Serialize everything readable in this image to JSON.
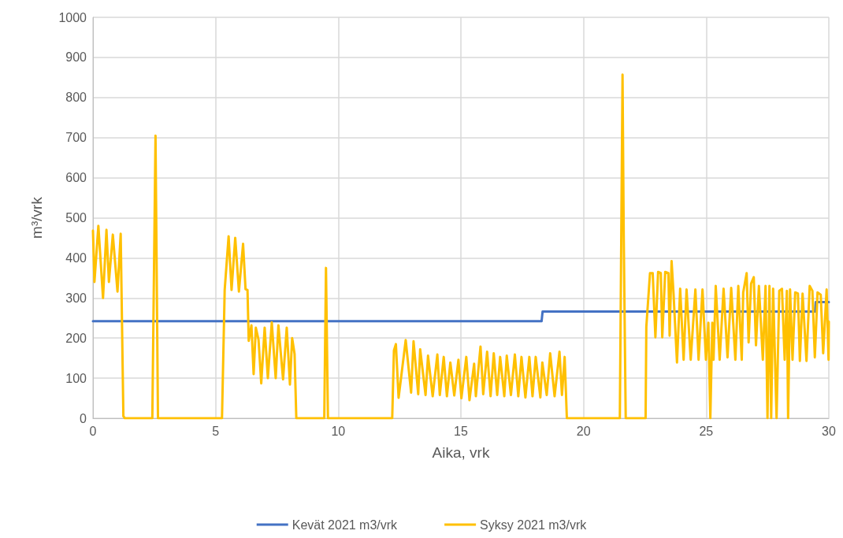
{
  "chart_data": {
    "type": "line",
    "xlabel": "Aika, vrk",
    "ylabel": "m³/vrk",
    "xlim": [
      0,
      30
    ],
    "xticks": [
      0,
      5,
      10,
      15,
      20,
      25,
      30
    ],
    "ylim": [
      0,
      1000
    ],
    "yticks": [
      0,
      100,
      200,
      300,
      400,
      500,
      600,
      700,
      800,
      900,
      1000
    ],
    "grid": true,
    "legend": "bottom",
    "marker": "none",
    "line_style": "solid",
    "series": [
      {
        "name": "Kevät 2021 m3/vrk",
        "color": "#4472c4",
        "x": [
          0,
          18.29,
          18.33,
          29.44,
          29.47,
          30
        ],
        "values": [
          242,
          242,
          266,
          266,
          290,
          290
        ]
      },
      {
        "name": "Syksy 2021 m3/vrk",
        "color": "#ffc000",
        "x": [
          0,
          0.06,
          0.22,
          0.41,
          0.55,
          0.65,
          0.81,
          1.0,
          1.13,
          1.24,
          1.3,
          2.42,
          2.55,
          2.65,
          5.26,
          5.37,
          5.53,
          5.65,
          5.8,
          5.95,
          6.12,
          6.22,
          6.3,
          6.35,
          6.46,
          6.55,
          6.64,
          6.75,
          6.86,
          7.0,
          7.13,
          7.29,
          7.45,
          7.56,
          7.75,
          7.9,
          8.03,
          8.12,
          8.22,
          8.29,
          9.43,
          9.5,
          9.58,
          12.2,
          12.27,
          12.35,
          12.46,
          12.75,
          12.97,
          13.07,
          13.26,
          13.34,
          13.56,
          13.66,
          13.85,
          14.04,
          14.14,
          14.3,
          14.43,
          14.57,
          14.73,
          14.9,
          15.02,
          15.22,
          15.35,
          15.54,
          15.61,
          15.8,
          15.91,
          16.07,
          16.21,
          16.34,
          16.48,
          16.6,
          16.77,
          16.87,
          17.04,
          17.2,
          17.34,
          17.47,
          17.63,
          17.79,
          17.92,
          18.05,
          18.24,
          18.32,
          18.5,
          18.64,
          18.82,
          19.02,
          19.12,
          19.23,
          19.32,
          21.48,
          21.59,
          21.64,
          21.72,
          22.53,
          22.56,
          22.71,
          22.82,
          22.93,
          23.04,
          23.15,
          23.21,
          23.33,
          23.46,
          23.51,
          23.59,
          23.67,
          23.81,
          23.94,
          24.08,
          24.2,
          24.37,
          24.56,
          24.69,
          24.85,
          24.99,
          25.09,
          25.17,
          25.25,
          25.3,
          25.39,
          25.55,
          25.71,
          25.87,
          26.02,
          26.19,
          26.31,
          26.45,
          26.51,
          26.65,
          26.73,
          26.83,
          26.94,
          27.03,
          27.15,
          27.31,
          27.42,
          27.5,
          27.58,
          27.65,
          27.73,
          27.87,
          27.98,
          28.09,
          28.2,
          28.29,
          28.34,
          28.42,
          28.52,
          28.63,
          28.74,
          28.82,
          28.93,
          29.09,
          29.22,
          29.33,
          29.43,
          29.54,
          29.67,
          29.77,
          29.91,
          29.99,
          30
        ],
        "values": [
          468,
          340,
          480,
          300,
          470,
          340,
          458,
          316,
          460,
          5,
          0,
          0,
          705,
          0,
          0,
          320,
          454,
          320,
          450,
          316,
          435,
          322,
          320,
          193,
          232,
          110,
          226,
          196,
          87,
          226,
          100,
          239,
          100,
          232,
          97,
          226,
          84,
          200,
          160,
          0,
          0,
          375,
          0,
          0,
          169,
          185,
          51,
          195,
          64,
          192,
          60,
          172,
          58,
          156,
          55,
          159,
          58,
          153,
          55,
          139,
          57,
          146,
          50,
          153,
          45,
          136,
          55,
          179,
          60,
          166,
          55,
          162,
          58,
          153,
          55,
          156,
          58,
          159,
          55,
          153,
          52,
          153,
          55,
          153,
          52,
          139,
          58,
          162,
          55,
          166,
          58,
          153,
          0,
          0,
          857,
          448,
          0,
          0,
          228,
          362,
          362,
          202,
          365,
          362,
          202,
          365,
          362,
          206,
          392,
          310,
          139,
          323,
          146,
          321,
          146,
          321,
          146,
          321,
          146,
          238,
          0,
          238,
          146,
          330,
          146,
          323,
          152,
          325,
          146,
          330,
          146,
          314,
          362,
          189,
          336,
          352,
          182,
          330,
          146,
          330,
          0,
          330,
          0,
          323,
          0,
          318,
          323,
          146,
          318,
          0,
          321,
          146,
          314,
          311,
          143,
          311,
          143,
          330,
          318,
          152,
          314,
          308,
          162,
          321,
          146,
          241
        ]
      }
    ]
  }
}
